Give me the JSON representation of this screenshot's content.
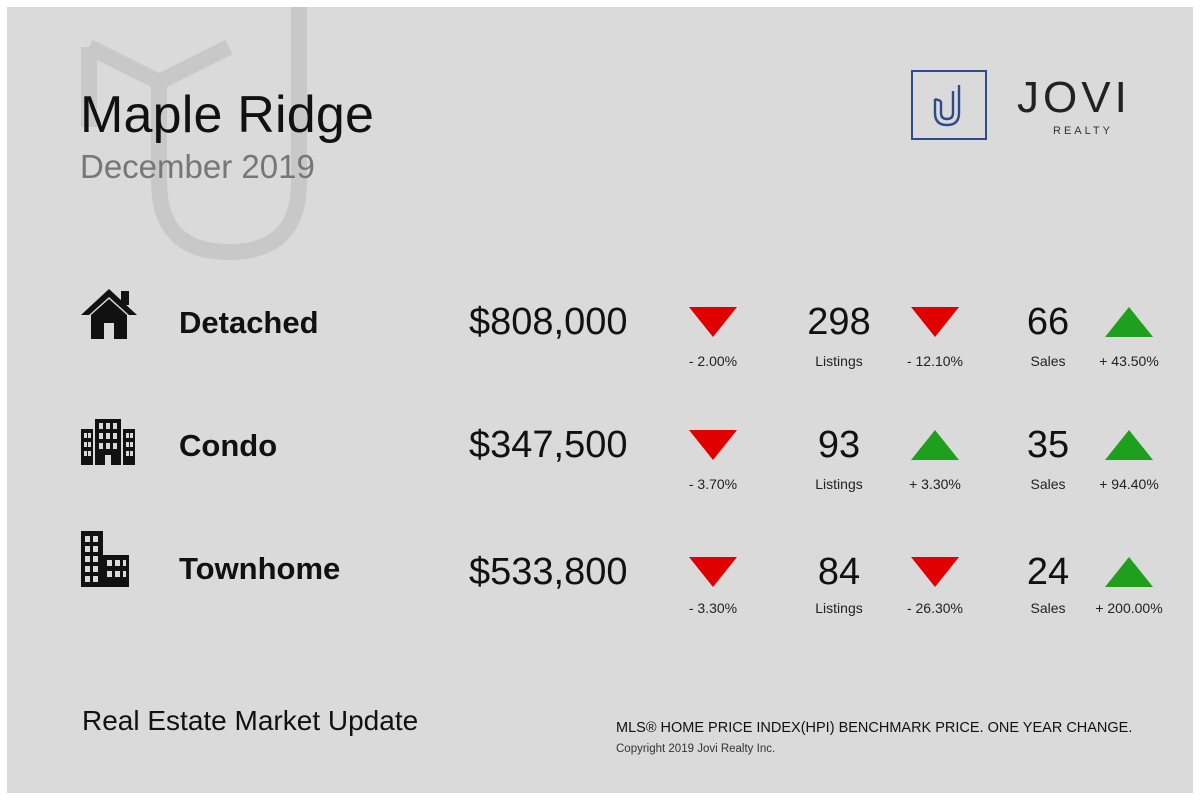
{
  "header": {
    "title": "Maple Ridge",
    "subtitle": "December 2019"
  },
  "brand": {
    "mark": "J",
    "name": "JOVI",
    "tagline": "REALTY",
    "color": "#2d4a8a"
  },
  "colors": {
    "down": "#e00000",
    "up": "#1ea01e"
  },
  "rows": [
    {
      "icon": "house-icon",
      "name": "Detached",
      "price": "$808,000",
      "price_change": "- 2.00%",
      "price_trend": "down",
      "listings": "298",
      "listings_label": "Listings",
      "listings_change": "- 12.10%",
      "listings_trend": "down",
      "sales": "66",
      "sales_label": "Sales",
      "sales_change": "+ 43.50%",
      "sales_trend": "up"
    },
    {
      "icon": "condo-building-icon",
      "name": "Condo",
      "price": "$347,500",
      "price_change": "- 3.70%",
      "price_trend": "down",
      "listings": "93",
      "listings_label": "Listings",
      "listings_change": "+ 3.30%",
      "listings_trend": "up",
      "sales": "35",
      "sales_label": "Sales",
      "sales_change": "+ 94.40%",
      "sales_trend": "up"
    },
    {
      "icon": "townhome-building-icon",
      "name": "Townhome",
      "price": "$533,800",
      "price_change": "- 3.30%",
      "price_trend": "down",
      "listings": "84",
      "listings_label": "Listings",
      "listings_change": "- 26.30%",
      "listings_trend": "down",
      "sales": "24",
      "sales_label": "Sales",
      "sales_change": "+ 200.00%",
      "sales_trend": "up"
    }
  ],
  "footer": {
    "title": "Real Estate Market Update",
    "note": "MLS® HOME PRICE INDEX(HPI) BENCHMARK PRICE. ONE YEAR CHANGE.",
    "copyright": "Copyright 2019 Jovi Realty Inc."
  }
}
